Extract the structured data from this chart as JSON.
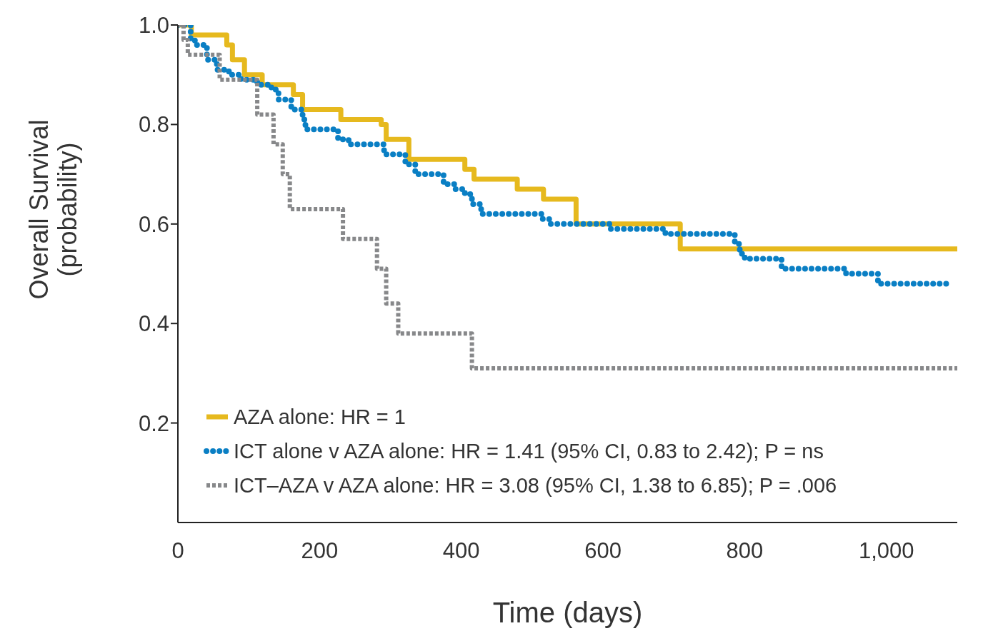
{
  "chart_data": {
    "type": "step",
    "xlabel": "Time (days)",
    "ylabel": "Overall Survival (probability)",
    "xlim": [
      0,
      1100
    ],
    "ylim": [
      0,
      1
    ],
    "xticks": [
      0,
      200,
      400,
      600,
      800,
      {
        "value": 1000,
        "label": "1,000"
      }
    ],
    "yticks": [
      {
        "value": 0.2,
        "label": "0.2"
      },
      {
        "value": 0.4,
        "label": "0.4"
      },
      {
        "value": 0.6,
        "label": "0.6"
      },
      {
        "value": 0.8,
        "label": "0.8"
      },
      {
        "value": 1,
        "label": "1.0"
      }
    ],
    "grid": false,
    "legend": "bottom left",
    "series": [
      {
        "name": "AZA alone: HR = 1",
        "color": "#e6b91e",
        "line_style": "solid",
        "x": [
          0,
          19,
          69,
          77,
          94,
          119,
          163,
          176,
          230,
          287,
          294,
          326,
          405,
          418,
          479,
          516,
          562,
          709,
          1100
        ],
        "values": [
          1.0,
          0.98,
          0.96,
          0.93,
          0.9,
          0.88,
          0.86,
          0.83,
          0.81,
          0.8,
          0.77,
          0.73,
          0.71,
          0.69,
          0.67,
          0.65,
          0.6,
          0.55,
          0.55
        ]
      },
      {
        "name": "ICT alone v AZA alone: HR = 1.41 (95% CI, 0.83 to 2.42); P = ns",
        "color": "#0a7fc4",
        "line_style": "dotted",
        "x": [
          0,
          18,
          24,
          41,
          55,
          72,
          89,
          112,
          132,
          142,
          160,
          176,
          180,
          226,
          241,
          291,
          321,
          335,
          375,
          392,
          405,
          415,
          428,
          513,
          524,
          611,
          688,
          786,
          793,
          800,
          852,
          943,
          988,
          1089
        ],
        "values": [
          1.0,
          0.97,
          0.96,
          0.93,
          0.91,
          0.9,
          0.89,
          0.88,
          0.87,
          0.85,
          0.83,
          0.81,
          0.79,
          0.77,
          0.76,
          0.74,
          0.72,
          0.7,
          0.68,
          0.67,
          0.66,
          0.64,
          0.62,
          0.61,
          0.6,
          0.59,
          0.58,
          0.56,
          0.54,
          0.53,
          0.51,
          0.5,
          0.48,
          0.48
        ]
      },
      {
        "name": "ICT–AZA v AZA alone: HR = 3.08 (95% CI, 1.38 to 6.85); P = .006",
        "color": "#87888a",
        "line_style": "dashed",
        "x": [
          0,
          8,
          14,
          59,
          112,
          135,
          148,
          158,
          233,
          281,
          294,
          311,
          415,
          1100
        ],
        "values": [
          1.0,
          0.97,
          0.94,
          0.89,
          0.82,
          0.76,
          0.7,
          0.63,
          0.57,
          0.51,
          0.44,
          0.38,
          0.31,
          0.31
        ]
      }
    ]
  }
}
